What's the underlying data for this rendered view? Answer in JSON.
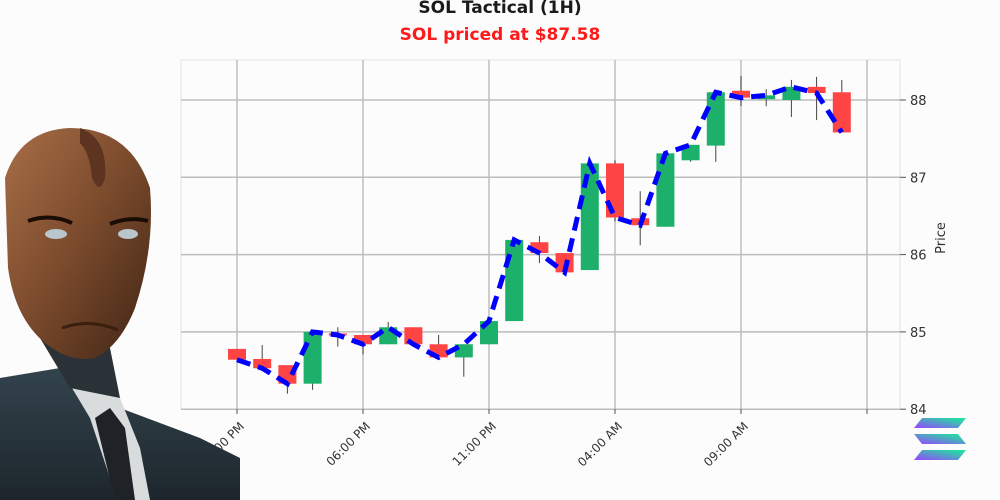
{
  "header": {
    "title": "SOL Tactical (1H)",
    "subtitle": "SOL priced at $87.58",
    "subtitle_color": "#ff1a1a"
  },
  "colors": {
    "up": "#1db06a",
    "down": "#ff4444",
    "line": "#0000ff",
    "grid": "#bdbdbd"
  },
  "chart_data": {
    "type": "candlestick",
    "title": "SOL Tactical (1H)",
    "subtitle": "SOL priced at $87.58",
    "xlabel": "",
    "ylabel": "Price",
    "ylim": [
      84,
      88.45
    ],
    "yticks": [
      84,
      85,
      86,
      87,
      88
    ],
    "xtick_labels": [
      "01:00 PM",
      "06:00 PM",
      "11:00 PM",
      "04:00 AM",
      "09:00 AM",
      ""
    ],
    "xtick_index": [
      0,
      5,
      10,
      15,
      20,
      25
    ],
    "grid": true,
    "legend": null,
    "overlay_line": {
      "name": "close line",
      "style": "dashed",
      "color": "#0000ff"
    },
    "candles": [
      {
        "t": "01:00 PM",
        "o": 84.78,
        "h": 84.78,
        "l": 84.64,
        "c": 84.64
      },
      {
        "t": "02:00 PM",
        "o": 84.65,
        "h": 84.83,
        "l": 84.53,
        "c": 84.53
      },
      {
        "t": "03:00 PM",
        "o": 84.57,
        "h": 84.57,
        "l": 84.2,
        "c": 84.33
      },
      {
        "t": "04:00 PM",
        "o": 84.33,
        "h": 85.0,
        "l": 84.25,
        "c": 85.0
      },
      {
        "t": "05:00 PM",
        "o": 84.98,
        "h": 85.06,
        "l": 84.81,
        "c": 84.96
      },
      {
        "t": "06:00 PM",
        "o": 84.96,
        "h": 84.96,
        "l": 84.71,
        "c": 84.84
      },
      {
        "t": "07:00 PM",
        "o": 84.84,
        "h": 85.13,
        "l": 84.84,
        "c": 85.06
      },
      {
        "t": "08:00 PM",
        "o": 85.06,
        "h": 85.06,
        "l": 84.84,
        "c": 84.84
      },
      {
        "t": "09:00 PM",
        "o": 84.84,
        "h": 84.96,
        "l": 84.67,
        "c": 84.67
      },
      {
        "t": "10:00 PM",
        "o": 84.67,
        "h": 84.84,
        "l": 84.42,
        "c": 84.84
      },
      {
        "t": "11:00 PM",
        "o": 84.84,
        "h": 85.14,
        "l": 84.84,
        "c": 85.14
      },
      {
        "t": "12:00 AM",
        "o": 85.14,
        "h": 86.19,
        "l": 85.14,
        "c": 86.19
      },
      {
        "t": "01:00 AM",
        "o": 86.16,
        "h": 86.24,
        "l": 85.89,
        "c": 86.02
      },
      {
        "t": "02:00 AM",
        "o": 86.02,
        "h": 86.02,
        "l": 85.77,
        "c": 85.77
      },
      {
        "t": "03:00 AM",
        "o": 85.8,
        "h": 87.18,
        "l": 85.8,
        "c": 87.18
      },
      {
        "t": "04:00 AM",
        "o": 87.18,
        "h": 87.22,
        "l": 86.43,
        "c": 86.48
      },
      {
        "t": "05:00 AM",
        "o": 86.47,
        "h": 86.82,
        "l": 86.12,
        "c": 86.38
      },
      {
        "t": "06:00 AM",
        "o": 86.36,
        "h": 87.31,
        "l": 86.36,
        "c": 87.31
      },
      {
        "t": "07:00 AM",
        "o": 87.22,
        "h": 87.42,
        "l": 87.2,
        "c": 87.42
      },
      {
        "t": "08:00 AM",
        "o": 87.41,
        "h": 88.1,
        "l": 87.2,
        "c": 88.1
      },
      {
        "t": "09:00 AM",
        "o": 88.12,
        "h": 88.31,
        "l": 87.92,
        "c": 88.03
      },
      {
        "t": "10:00 AM",
        "o": 88.01,
        "h": 88.14,
        "l": 87.92,
        "c": 88.06
      },
      {
        "t": "11:00 AM",
        "o": 88.0,
        "h": 88.26,
        "l": 87.78,
        "c": 88.17
      },
      {
        "t": "12:00 PM",
        "o": 88.17,
        "h": 88.3,
        "l": 87.74,
        "c": 88.09
      },
      {
        "t": "01:00 PM",
        "o": 88.1,
        "h": 88.26,
        "l": 87.6,
        "c": 87.58
      }
    ]
  },
  "logo": {
    "name": "Solana logo"
  },
  "avatar": {
    "description": "android man in suit"
  }
}
